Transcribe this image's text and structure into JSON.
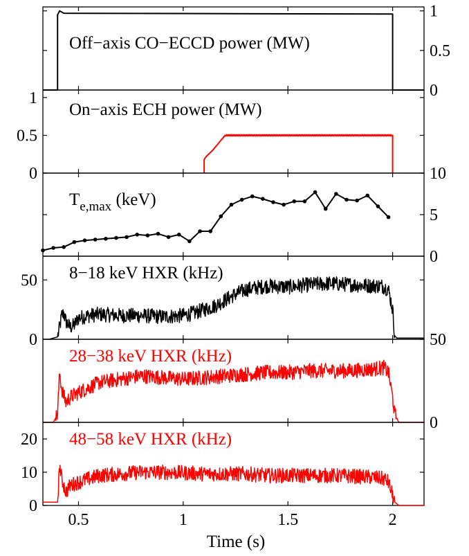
{
  "chart_data": {
    "type": "line",
    "xlabel": "Time (s)",
    "xlim": [
      0.33,
      2.15
    ],
    "xticks": [
      0.5,
      1,
      1.5,
      2
    ],
    "xticklabels": [
      "0.5",
      "1",
      "1.5",
      "2"
    ],
    "panels": [
      {
        "label": "Off−axis CO−ECCD power (MW)",
        "label_color": "#000000",
        "axis_side": "right",
        "ylim": [
          0,
          1.05
        ],
        "yticks": [
          0,
          0.5,
          1
        ],
        "yticklabels": [
          "0",
          "0.5",
          "1"
        ],
        "series": [
          {
            "color": "#000000",
            "markers": false,
            "x": [
              0.33,
              0.4,
              0.4,
              0.41,
              0.43,
              2.0,
              2.0,
              2.15
            ],
            "y": [
              0,
              0,
              0.95,
              1.0,
              0.97,
              0.96,
              0,
              0
            ]
          }
        ]
      },
      {
        "label": "On−axis ECH power (MW)",
        "label_color": "#000000",
        "axis_side": "left",
        "ylim": [
          0,
          1.1
        ],
        "yticks": [
          0,
          0.5,
          1
        ],
        "yticklabels": [
          "0",
          "0.5",
          "1"
        ],
        "series": [
          {
            "color": "#ff0000",
            "markers": false,
            "x": [
              1.1,
              1.1,
              1.11,
              1.14,
              1.17,
              1.2,
              1.25,
              1.5,
              1.75,
              2.0,
              2.0
            ],
            "y": [
              0,
              0.18,
              0.22,
              0.3,
              0.4,
              0.5,
              0.5,
              0.5,
              0.5,
              0.5,
              0
            ]
          }
        ]
      },
      {
        "label_main": "T",
        "label_sub": "e,max",
        "label_rest": " (keV)",
        "label_color": "#000000",
        "axis_side": "right",
        "ylim": [
          0,
          10
        ],
        "yticks": [
          0,
          5,
          10
        ],
        "yticklabels": [
          "0",
          "5",
          "10"
        ],
        "series": [
          {
            "color": "#000000",
            "markers": true,
            "x": [
              0.33,
              0.38,
              0.43,
              0.48,
              0.53,
              0.58,
              0.63,
              0.68,
              0.73,
              0.78,
              0.83,
              0.88,
              0.93,
              0.98,
              1.03,
              1.08,
              1.13,
              1.18,
              1.23,
              1.28,
              1.33,
              1.38,
              1.43,
              1.48,
              1.53,
              1.58,
              1.63,
              1.68,
              1.73,
              1.78,
              1.83,
              1.88,
              1.93,
              1.98
            ],
            "y": [
              0.7,
              1.0,
              1.1,
              1.7,
              1.9,
              2.0,
              2.1,
              2.2,
              2.3,
              2.6,
              2.5,
              2.7,
              2.3,
              2.6,
              1.8,
              3.0,
              3.0,
              4.8,
              6.2,
              6.8,
              7.2,
              6.9,
              6.5,
              6.2,
              6.6,
              6.6,
              7.7,
              5.7,
              7.5,
              6.8,
              6.7,
              7.3,
              6.0,
              4.7
            ]
          }
        ]
      },
      {
        "label": "8−18 keV HXR (kHz)",
        "label_color": "#000000",
        "axis_side": "left",
        "ylim": [
          0,
          70
        ],
        "yticks": [
          0,
          50
        ],
        "yticklabels": [
          "0",
          "50"
        ],
        "series": [
          {
            "color": "#000000",
            "markers": false,
            "x": [
              0.35,
              0.36,
              0.38,
              0.4,
              0.41,
              0.42,
              0.43,
              0.44,
              0.46,
              0.48,
              0.5,
              0.55,
              0.6,
              0.7,
              0.8,
              0.9,
              1.0,
              1.05,
              1.1,
              1.15,
              1.2,
              1.25,
              1.3,
              1.4,
              1.5,
              1.6,
              1.7,
              1.8,
              1.9,
              1.95,
              1.98,
              2.0,
              2.01,
              2.02,
              2.15
            ],
            "y": [
              0,
              0,
              1,
              2,
              10,
              20,
              22,
              15,
              10,
              12,
              18,
              20,
              21,
              20,
              20,
              19,
              20,
              22,
              25,
              28,
              33,
              38,
              42,
              45,
              44,
              46,
              47,
              46,
              45,
              45,
              42,
              25,
              3,
              1,
              1
            ]
          }
        ]
      },
      {
        "label": "28−38 keV HXR (kHz)",
        "label_color": "#ff0000",
        "axis_side": "right",
        "ylim": [
          0,
          50
        ],
        "yticks": [
          0,
          50
        ],
        "yticklabels": [
          "0",
          "50"
        ],
        "series": [
          {
            "color": "#ff0000",
            "markers": false,
            "x": [
              0.33,
              0.36,
              0.38,
              0.4,
              0.41,
              0.42,
              0.44,
              0.46,
              0.5,
              0.6,
              0.7,
              0.8,
              0.9,
              1.0,
              1.1,
              1.2,
              1.3,
              1.4,
              1.5,
              1.6,
              1.7,
              1.8,
              1.9,
              1.96,
              1.98,
              2.0,
              2.01,
              2.03,
              2.15
            ],
            "y": [
              0,
              0,
              0,
              5,
              30,
              20,
              12,
              15,
              18,
              24,
              26,
              28,
              27,
              26,
              27,
              28,
              29,
              30,
              30,
              31,
              31,
              31,
              32,
              33,
              30,
              15,
              5,
              0,
              0
            ]
          }
        ]
      },
      {
        "label": "48−58 keV HXR (kHz)",
        "label_color": "#ff0000",
        "axis_side": "left",
        "ylim": [
          0,
          25
        ],
        "yticks": [
          0,
          10,
          20
        ],
        "yticklabels": [
          "0",
          "10",
          "20"
        ],
        "series": [
          {
            "color": "#ff0000",
            "markers": false,
            "x": [
              0.33,
              0.36,
              0.38,
              0.4,
              0.41,
              0.42,
              0.44,
              0.46,
              0.5,
              0.6,
              0.7,
              0.8,
              0.9,
              1.0,
              1.1,
              1.2,
              1.3,
              1.4,
              1.5,
              1.6,
              1.7,
              1.8,
              1.9,
              1.96,
              1.98,
              2.0,
              2.01,
              2.03,
              2.15
            ],
            "y": [
              1,
              1,
              1,
              1,
              12,
              8,
              4,
              6,
              7,
              9,
              9.5,
              10,
              10,
              9.8,
              9.5,
              9.5,
              9.5,
              9,
              9,
              9,
              9,
              8.8,
              8.5,
              8,
              7,
              3,
              1,
              0,
              0
            ]
          }
        ]
      }
    ]
  }
}
